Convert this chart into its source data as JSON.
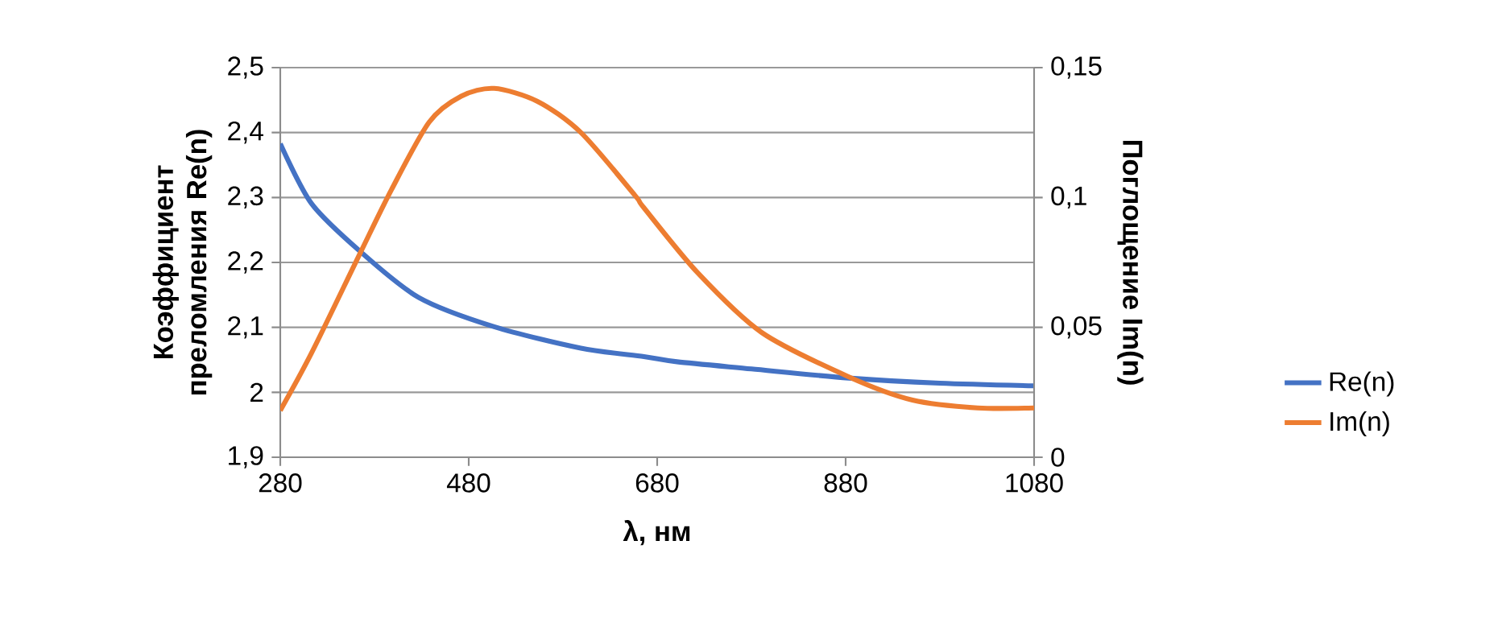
{
  "chart_data": {
    "type": "line",
    "xlabel": "λ, нм",
    "ylabel": "Коэффициент преломления Re(n)",
    "y2label": "Поглощение Im(n)",
    "xlim": [
      280,
      1080
    ],
    "xticks": [
      280,
      480,
      680,
      880,
      1080
    ],
    "ylim": [
      1.9,
      2.5
    ],
    "yticks": [
      {
        "value": 1.9,
        "label": "1,9"
      },
      2,
      {
        "value": 2.1,
        "label": "2,1"
      },
      {
        "value": 2.2,
        "label": "2,2"
      },
      {
        "value": 2.3,
        "label": "2,3"
      },
      {
        "value": 2.4,
        "label": "2,4"
      },
      {
        "value": 2.5,
        "label": "2,5"
      }
    ],
    "y2lim": [
      0,
      0.15
    ],
    "y2ticks": [
      0,
      {
        "value": 0.05,
        "label": "0,05"
      },
      {
        "value": 0.1,
        "label": "0,1"
      },
      {
        "value": 0.15,
        "label": "0,15"
      }
    ],
    "grid": "y",
    "legend": "right",
    "marker": "none",
    "line_style": "solid",
    "series": [
      {
        "name": "Re(n)",
        "color": "#4472c4",
        "x": [
          280,
          313,
          364,
          427,
          507,
          599,
          666,
          701,
          780,
          883,
          980,
          1080
        ],
        "values": [
          2.383,
          2.291,
          2.218,
          2.146,
          2.101,
          2.068,
          2.055,
          2.047,
          2.036,
          2.022,
          2.014,
          2.01
        ]
      },
      {
        "name": "Im(n)",
        "color": "#ed7d31",
        "axis": "y2",
        "x": [
          280,
          313,
          364,
          398,
          438,
          472,
          507,
          553,
          599,
          656,
          666,
          723,
          791,
          883,
          951,
          1020,
          1080
        ],
        "values": [
          0.018,
          0.04,
          0.078,
          0.103,
          0.129,
          0.139,
          0.142,
          0.137,
          0.125,
          0.101,
          0.096,
          0.071,
          0.048,
          0.031,
          0.022,
          0.019,
          0.019
        ]
      }
    ]
  }
}
